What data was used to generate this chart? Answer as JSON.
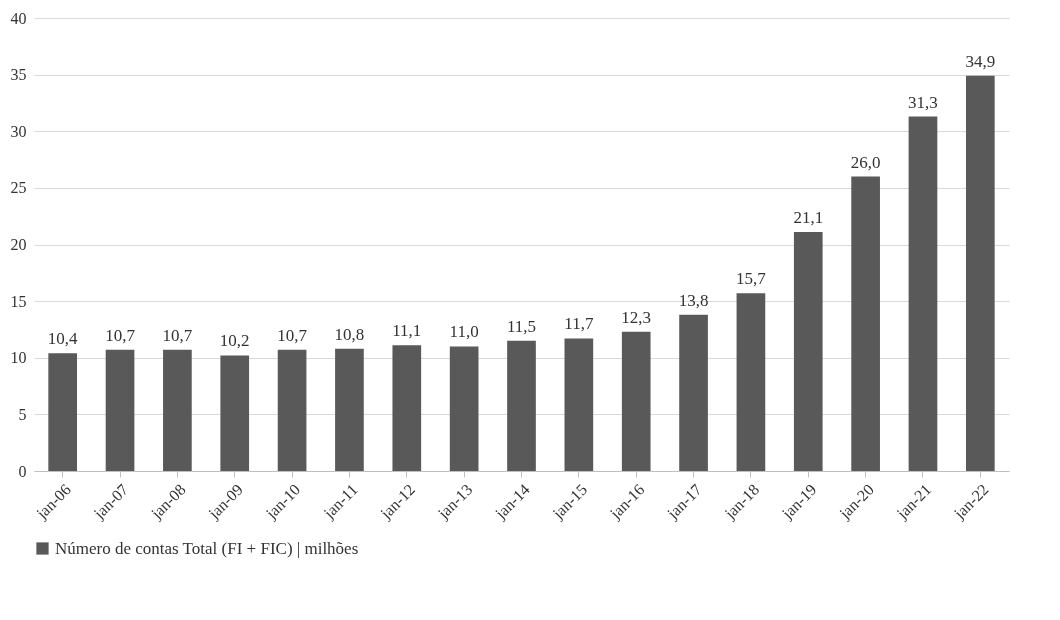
{
  "chart_data": {
    "type": "bar",
    "categories": [
      "jan-06",
      "jan-07",
      "jan-08",
      "jan-09",
      "jan-10",
      "jan-11",
      "jan-12",
      "jan-13",
      "jan-14",
      "jan-15",
      "jan-16",
      "jan-17",
      "jan-18",
      "jan-19",
      "jan-20",
      "jan-21",
      "jan-22"
    ],
    "series": [
      {
        "name": "Número de contas Total (FI + FIC) | milhões",
        "color": "#595959",
        "values": [
          10.4,
          10.7,
          10.7,
          10.2,
          10.7,
          10.8,
          11.1,
          11.0,
          11.5,
          11.7,
          12.3,
          13.8,
          15.7,
          21.1,
          26.0,
          31.3,
          34.9
        ],
        "value_labels": [
          "10,4",
          "10,7",
          "10,7",
          "10,2",
          "10,7",
          "10,8",
          "11,1",
          "11,0",
          "11,5",
          "11,7",
          "12,3",
          "13,8",
          "15,7",
          "21,1",
          "26,0",
          "31,3",
          "34,9"
        ]
      }
    ],
    "ylim": [
      0,
      40
    ],
    "yticks": [
      0,
      5,
      10,
      15,
      20,
      25,
      30,
      35,
      40
    ],
    "grid": "y",
    "legend": "bottom"
  }
}
